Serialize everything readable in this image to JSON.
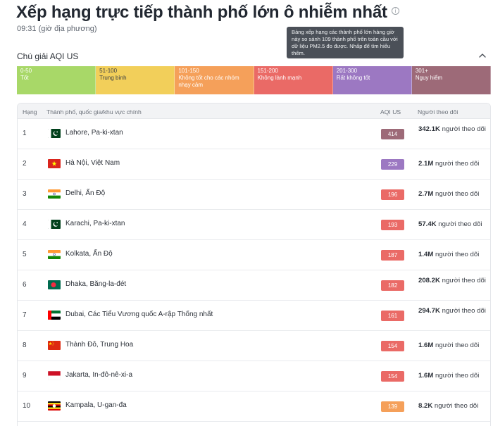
{
  "page": {
    "title": "Xếp hạng trực tiếp thành phố lớn ô nhiễm nhất",
    "time": "09:31 (giờ địa phương)",
    "tooltip": "Bảng xếp hạng các thành phố lớn hàng giờ này so sánh 109 thành phố trên toàn cầu với dữ liệu PM2.5 đo được. Nhấp để tìm hiểu thêm.",
    "info_icon": "info-icon"
  },
  "legend": {
    "title": "Chú giải AQI US",
    "toggle_icon": "chevron-up-icon",
    "items": [
      {
        "range": "0-50",
        "label": "Tốt",
        "color": "#a8d868"
      },
      {
        "range": "51-100",
        "label": "Trung bình",
        "color": "#f2cf5a"
      },
      {
        "range": "101-150",
        "label": "Không tốt cho các nhóm nhạy cảm",
        "color": "#f5a05a"
      },
      {
        "range": "151-200",
        "label": "Không lành mạnh",
        "color": "#ea6a66"
      },
      {
        "range": "201-300",
        "label": "Rất không tốt",
        "color": "#9c78c2"
      },
      {
        "range": "301+",
        "label": "Nguy hiểm",
        "color": "#9d6a78"
      }
    ]
  },
  "table": {
    "headers": {
      "rank": "Hạng",
      "city": "Thành phố, quốc gia/khu vực chính",
      "aqi": "AQI US",
      "followers": "Người theo dõi"
    },
    "followers_suffix": "người theo dõi",
    "rows": [
      {
        "rank": "1",
        "city": "Lahore, Pa-ki-xtan",
        "flag": "pakistan",
        "aqi": "414",
        "aqi_color": "#9d6a78",
        "followers": "342.1K",
        "wrap": true
      },
      {
        "rank": "2",
        "city": "Hà Nội, Việt Nam",
        "flag": "vietnam",
        "aqi": "229",
        "aqi_color": "#9c78c2",
        "followers": "2.1M",
        "wrap": false
      },
      {
        "rank": "3",
        "city": "Delhi, Ấn Độ",
        "flag": "india",
        "aqi": "196",
        "aqi_color": "#ea6a66",
        "followers": "2.7M",
        "wrap": false
      },
      {
        "rank": "4",
        "city": "Karachi, Pa-ki-xtan",
        "flag": "pakistan",
        "aqi": "193",
        "aqi_color": "#ea6a66",
        "followers": "57.4K",
        "wrap": false
      },
      {
        "rank": "5",
        "city": "Kolkata, Ấn Độ",
        "flag": "india",
        "aqi": "187",
        "aqi_color": "#ea6a66",
        "followers": "1.4M",
        "wrap": false
      },
      {
        "rank": "6",
        "city": "Dhaka, Băng-la-đét",
        "flag": "bangladesh",
        "aqi": "182",
        "aqi_color": "#ea6a66",
        "followers": "208.2K",
        "wrap": true
      },
      {
        "rank": "7",
        "city": "Dubai, Các Tiểu Vương quốc A-rập Thống nhất",
        "flag": "uae",
        "aqi": "161",
        "aqi_color": "#ea6a66",
        "followers": "294.7K",
        "wrap": true
      },
      {
        "rank": "8",
        "city": "Thành Đô, Trung Hoa",
        "flag": "china",
        "aqi": "154",
        "aqi_color": "#ea6a66",
        "followers": "1.6M",
        "wrap": false
      },
      {
        "rank": "9",
        "city": "Jakarta, In-đô-nê-xi-a",
        "flag": "indonesia",
        "aqi": "154",
        "aqi_color": "#ea6a66",
        "followers": "1.6M",
        "wrap": false
      },
      {
        "rank": "10",
        "city": "Kampala, U-gan-đa",
        "flag": "uganda",
        "aqi": "139",
        "aqi_color": "#f5a05a",
        "followers": "8.2K",
        "wrap": false
      }
    ]
  }
}
